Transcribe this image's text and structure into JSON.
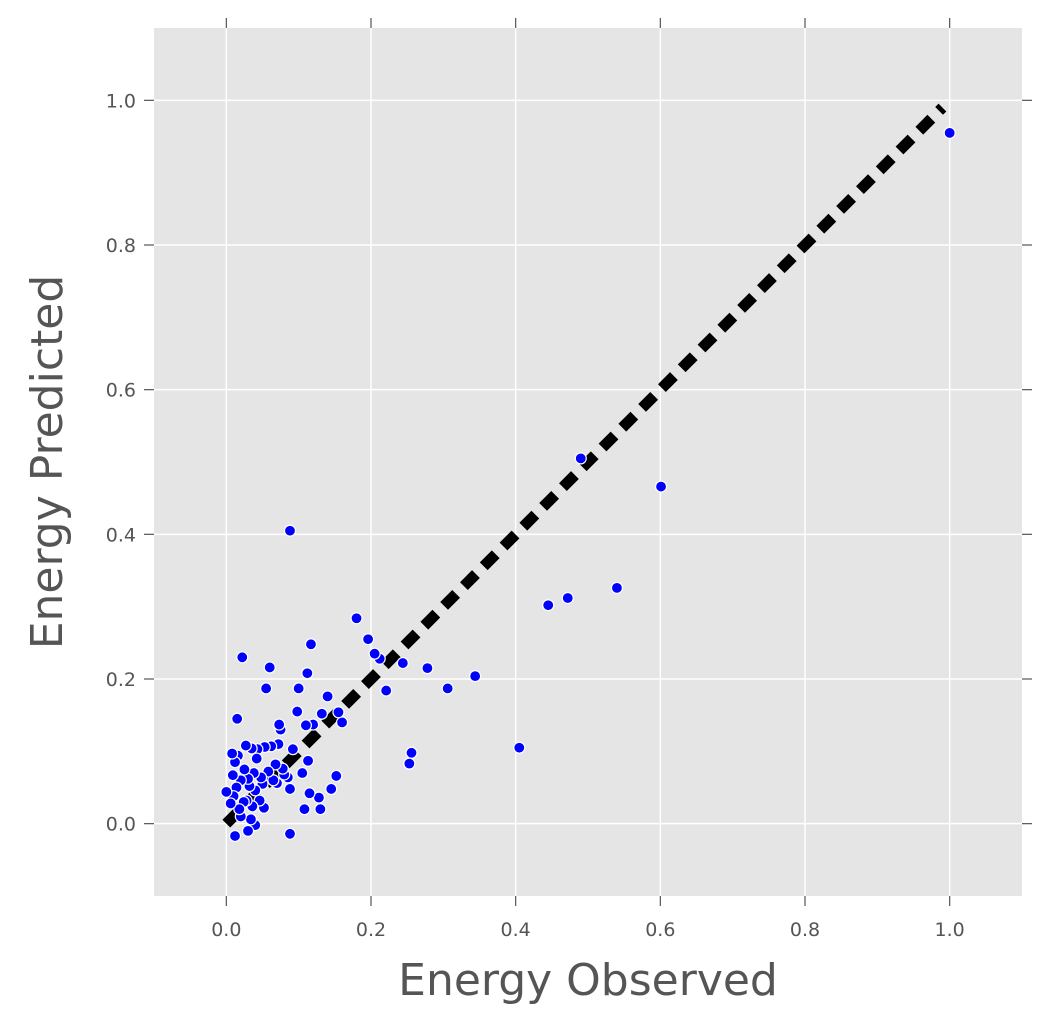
{
  "chart_data": {
    "type": "scatter",
    "xlabel": "Energy Observed",
    "ylabel": "Energy Predicted",
    "xlim": [
      -0.1,
      1.1
    ],
    "ylim": [
      -0.1,
      1.1
    ],
    "xticks": [
      "0.0",
      "0.2",
      "0.4",
      "0.6",
      "0.8",
      "1.0"
    ],
    "yticks": [
      "0.0",
      "0.2",
      "0.4",
      "0.6",
      "0.8",
      "1.0"
    ],
    "grid": true,
    "style": {
      "background": "#e5e5e5",
      "grid_color": "#ffffff",
      "point_color": "#0000ff",
      "line_color": "#000000"
    },
    "reference_line": {
      "x": [
        0.0,
        0.99
      ],
      "y": [
        0.0,
        0.99
      ]
    },
    "series": [
      {
        "points": [
          [
            1.0,
            0.955
          ],
          [
            0.601,
            0.466
          ],
          [
            0.49,
            0.505
          ],
          [
            0.54,
            0.326
          ],
          [
            0.472,
            0.312
          ],
          [
            0.445,
            0.302
          ],
          [
            0.405,
            0.105
          ],
          [
            0.344,
            0.204
          ],
          [
            0.306,
            0.187
          ],
          [
            0.278,
            0.215
          ],
          [
            0.256,
            0.098
          ],
          [
            0.253,
            0.083
          ],
          [
            0.244,
            0.222
          ],
          [
            0.221,
            0.184
          ],
          [
            0.212,
            0.228
          ],
          [
            0.205,
            0.235
          ],
          [
            0.196,
            0.255
          ],
          [
            0.18,
            0.284
          ],
          [
            0.16,
            0.14
          ],
          [
            0.155,
            0.154
          ],
          [
            0.152,
            0.066
          ],
          [
            0.145,
            0.048
          ],
          [
            0.14,
            0.176
          ],
          [
            0.132,
            0.152
          ],
          [
            0.13,
            0.02
          ],
          [
            0.128,
            0.036
          ],
          [
            0.12,
            0.137
          ],
          [
            0.117,
            0.248
          ],
          [
            0.115,
            0.042
          ],
          [
            0.113,
            0.087
          ],
          [
            0.112,
            0.208
          ],
          [
            0.11,
            0.136
          ],
          [
            0.108,
            0.02
          ],
          [
            0.105,
            0.07
          ],
          [
            0.1,
            0.187
          ],
          [
            0.098,
            0.155
          ],
          [
            0.092,
            0.103
          ],
          [
            0.088,
            0.405
          ],
          [
            0.088,
            0.048
          ],
          [
            0.088,
            -0.014
          ],
          [
            0.085,
            0.064
          ],
          [
            0.08,
            0.068
          ],
          [
            0.078,
            0.076
          ],
          [
            0.075,
            0.13
          ],
          [
            0.073,
            0.137
          ],
          [
            0.072,
            0.11
          ],
          [
            0.07,
            0.056
          ],
          [
            0.068,
            0.082
          ],
          [
            0.065,
            0.06
          ],
          [
            0.062,
            0.107
          ],
          [
            0.06,
            0.216
          ],
          [
            0.058,
            0.072
          ],
          [
            0.055,
            0.187
          ],
          [
            0.053,
            0.106
          ],
          [
            0.052,
            0.022
          ],
          [
            0.05,
            0.055
          ],
          [
            0.048,
            0.064
          ],
          [
            0.046,
            0.032
          ],
          [
            0.043,
            0.103
          ],
          [
            0.042,
            0.09
          ],
          [
            0.04,
            0.046
          ],
          [
            0.04,
            -0.002
          ],
          [
            0.038,
            0.07
          ],
          [
            0.036,
            0.024
          ],
          [
            0.035,
            0.104
          ],
          [
            0.034,
            0.006
          ],
          [
            0.032,
            0.052
          ],
          [
            0.03,
            0.062
          ],
          [
            0.03,
            -0.01
          ],
          [
            0.028,
            0.032
          ],
          [
            0.027,
            0.108
          ],
          [
            0.025,
            0.075
          ],
          [
            0.024,
            0.03
          ],
          [
            0.022,
            0.23
          ],
          [
            0.02,
            0.06
          ],
          [
            0.02,
            0.01
          ],
          [
            0.018,
            0.02
          ],
          [
            0.016,
            0.094
          ],
          [
            0.015,
            0.145
          ],
          [
            0.014,
            0.05
          ],
          [
            0.012,
            0.085
          ],
          [
            0.012,
            -0.017
          ],
          [
            0.01,
            0.038
          ],
          [
            0.009,
            0.067
          ],
          [
            0.008,
            0.097
          ],
          [
            0.006,
            0.028
          ],
          [
            0.0,
            0.044
          ]
        ]
      }
    ]
  }
}
